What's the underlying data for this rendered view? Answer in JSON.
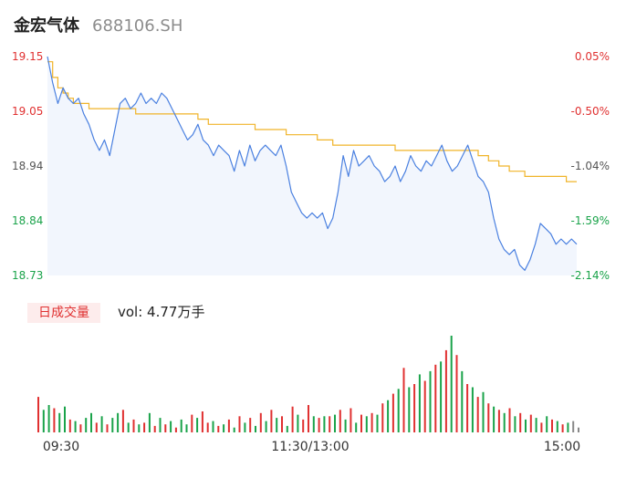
{
  "header": {
    "name": "金宏气体",
    "code": "688106.SH"
  },
  "volume": {
    "badge": "日成交量",
    "label": "vol: 4.77万手"
  },
  "colors": {
    "up": "#e03030",
    "down": "#1aa34a",
    "price_line": "#4a80e0",
    "avg_line": "#f0b429",
    "area": "#f2f6fd",
    "neutral": "#888888"
  },
  "chart_data": [
    {
      "type": "line",
      "x_ticks": [
        "09:30",
        "11:30/13:00",
        "15:00"
      ],
      "y_ticks_left": [
        "19.15",
        "19.05",
        "18.94",
        "18.84",
        "18.73"
      ],
      "y_ticks_right": [
        "0.05%",
        "-0.50%",
        "-1.04%",
        "-1.59%",
        "-2.14%"
      ],
      "ylim": [
        18.73,
        19.15
      ],
      "series": [
        {
          "role": "price",
          "values": [
            19.15,
            19.1,
            19.06,
            19.09,
            19.07,
            19.06,
            19.07,
            19.04,
            19.02,
            18.99,
            18.97,
            18.99,
            18.96,
            19.01,
            19.06,
            19.07,
            19.05,
            19.06,
            19.08,
            19.06,
            19.07,
            19.06,
            19.08,
            19.07,
            19.05,
            19.03,
            19.01,
            18.99,
            19.0,
            19.02,
            18.99,
            18.98,
            18.96,
            18.98,
            18.97,
            18.96,
            18.93,
            18.97,
            18.94,
            18.98,
            18.95,
            18.97,
            18.98,
            18.97,
            18.96,
            18.98,
            18.94,
            18.89,
            18.87,
            18.85,
            18.84,
            18.85,
            18.84,
            18.85,
            18.82,
            18.84,
            18.89,
            18.96,
            18.92,
            18.97,
            18.94,
            18.95,
            18.96,
            18.94,
            18.93,
            18.91,
            18.92,
            18.94,
            18.91,
            18.93,
            18.96,
            18.94,
            18.93,
            18.95,
            18.94,
            18.96,
            18.98,
            18.95,
            18.93,
            18.94,
            18.96,
            18.98,
            18.95,
            18.92,
            18.91,
            18.89,
            18.84,
            18.8,
            18.78,
            18.77,
            18.78,
            18.75,
            18.74,
            18.76,
            18.79,
            18.83,
            18.82,
            18.81,
            18.79,
            18.8,
            18.79,
            18.8,
            18.79
          ]
        },
        {
          "role": "average",
          "values": [
            19.14,
            19.11,
            19.09,
            19.08,
            19.07,
            19.06,
            19.06,
            19.06,
            19.05,
            19.05,
            19.05,
            19.05,
            19.05,
            19.05,
            19.05,
            19.05,
            19.05,
            19.04,
            19.04,
            19.04,
            19.04,
            19.04,
            19.04,
            19.04,
            19.04,
            19.04,
            19.04,
            19.04,
            19.04,
            19.03,
            19.03,
            19.02,
            19.02,
            19.02,
            19.02,
            19.02,
            19.02,
            19.02,
            19.02,
            19.02,
            19.01,
            19.01,
            19.01,
            19.01,
            19.01,
            19.01,
            19.0,
            19.0,
            19.0,
            19.0,
            19.0,
            19.0,
            18.99,
            18.99,
            18.99,
            18.98,
            18.98,
            18.98,
            18.98,
            18.98,
            18.98,
            18.98,
            18.98,
            18.98,
            18.98,
            18.98,
            18.98,
            18.97,
            18.97,
            18.97,
            18.97,
            18.97,
            18.97,
            18.97,
            18.97,
            18.97,
            18.97,
            18.97,
            18.97,
            18.97,
            18.97,
            18.97,
            18.97,
            18.96,
            18.96,
            18.95,
            18.95,
            18.94,
            18.94,
            18.93,
            18.93,
            18.93,
            18.92,
            18.92,
            18.92,
            18.92,
            18.92,
            18.92,
            18.92,
            18.92,
            18.91,
            18.91,
            18.91
          ]
        }
      ]
    },
    {
      "type": "bar",
      "values": [
        22,
        14,
        17,
        15,
        12,
        16,
        8,
        7,
        5,
        9,
        12,
        6,
        10,
        5,
        9,
        12,
        14,
        6,
        8,
        5,
        6,
        12,
        4,
        9,
        5,
        7,
        3,
        8,
        5,
        11,
        9,
        13,
        6,
        7,
        4,
        5,
        8,
        3,
        10,
        6,
        9,
        4,
        12,
        7,
        14,
        9,
        10,
        4,
        16,
        11,
        8,
        17,
        10,
        9,
        10,
        10,
        11,
        14,
        8,
        15,
        6,
        11,
        10,
        12,
        11,
        18,
        20,
        24,
        27,
        40,
        28,
        30,
        36,
        32,
        38,
        42,
        44,
        51,
        60,
        48,
        38,
        30,
        28,
        22,
        25,
        18,
        16,
        14,
        12,
        15,
        10,
        12,
        8,
        11,
        9,
        6,
        10,
        8,
        7,
        5,
        6,
        7,
        3
      ],
      "colors": [
        "up",
        "down",
        "down",
        "up",
        "down",
        "down",
        "up",
        "down",
        "up",
        "down",
        "down",
        "up",
        "down",
        "up",
        "down",
        "down",
        "up",
        "down",
        "up",
        "down",
        "up",
        "down",
        "up",
        "down",
        "up",
        "down",
        "up",
        "down",
        "down",
        "up",
        "down",
        "up",
        "up",
        "down",
        "up",
        "down",
        "up",
        "down",
        "up",
        "down",
        "up",
        "down",
        "up",
        "down",
        "up",
        "down",
        "up",
        "down",
        "up",
        "down",
        "up",
        "up",
        "down",
        "up",
        "down",
        "up",
        "down",
        "up",
        "down",
        "up",
        "down",
        "up",
        "down",
        "up",
        "down",
        "up",
        "down",
        "up",
        "down",
        "up",
        "down",
        "up",
        "down",
        "up",
        "down",
        "up",
        "down",
        "up",
        "down",
        "up",
        "down",
        "up",
        "down",
        "up",
        "down",
        "up",
        "down",
        "up",
        "down",
        "up",
        "down",
        "up",
        "down",
        "up",
        "down",
        "up",
        "down",
        "up",
        "down",
        "up",
        "down",
        "neutral"
      ]
    }
  ]
}
